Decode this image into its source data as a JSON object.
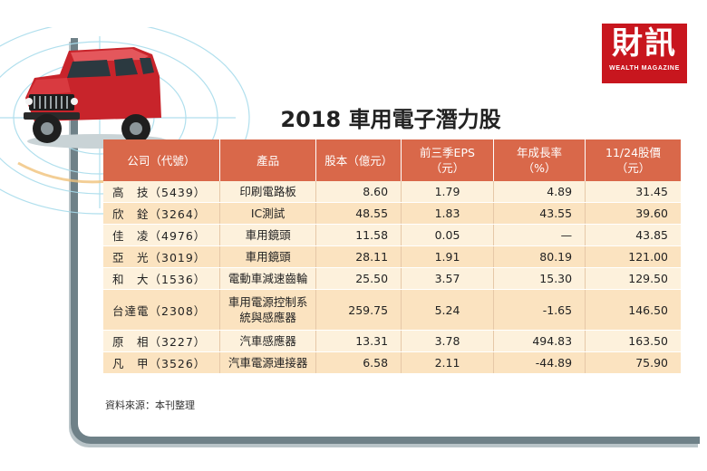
{
  "brand": {
    "name": "財訊",
    "subtitle": "WEALTH MAGAZINE",
    "color": "#c8161e"
  },
  "title": "2018 車用電子潛力股",
  "table": {
    "header_color": "#d9684a",
    "headers": [
      [
        "公司（代號）"
      ],
      [
        "產品"
      ],
      [
        "股本（億元）"
      ],
      [
        "前三季EPS",
        "（元）"
      ],
      [
        "年成長率",
        "（%）"
      ],
      [
        "11/24股價",
        "（元）"
      ]
    ],
    "rows": [
      {
        "company": "高　技（5439）",
        "product": "印刷電路板",
        "capital": "8.60",
        "eps": "1.79",
        "growth": "4.89",
        "price": "31.45"
      },
      {
        "company": "欣　銓（3264）",
        "product": "IC測試",
        "capital": "48.55",
        "eps": "1.83",
        "growth": "43.55",
        "price": "39.60"
      },
      {
        "company": "佳　凌（4976）",
        "product": "車用鏡頭",
        "capital": "11.58",
        "eps": "0.05",
        "growth": "—",
        "price": "43.85"
      },
      {
        "company": "亞　光（3019）",
        "product": "車用鏡頭",
        "capital": "28.11",
        "eps": "1.91",
        "growth": "80.19",
        "price": "121.00"
      },
      {
        "company": "和　大（1536）",
        "product": "電動車減速齒輪",
        "capital": "25.50",
        "eps": "3.57",
        "growth": "15.30",
        "price": "129.50"
      },
      {
        "company": "台達電（2308）",
        "product": "車用電源控制系統與感應器",
        "capital": "259.75",
        "eps": "5.24",
        "growth": "-1.65",
        "price": "146.50"
      },
      {
        "company": "原　相（3227）",
        "product": "汽車感應器",
        "capital": "13.31",
        "eps": "3.78",
        "growth": "494.83",
        "price": "163.50"
      },
      {
        "company": "凡　甲（3526）",
        "product": "汽車電源連接器",
        "capital": "6.58",
        "eps": "2.11",
        "growth": "-44.89",
        "price": "75.90"
      }
    ]
  },
  "source": "資料來源：本刊整理",
  "illustration": {
    "car_color": "#c8242b",
    "ring_color": "#9fd6e8"
  }
}
